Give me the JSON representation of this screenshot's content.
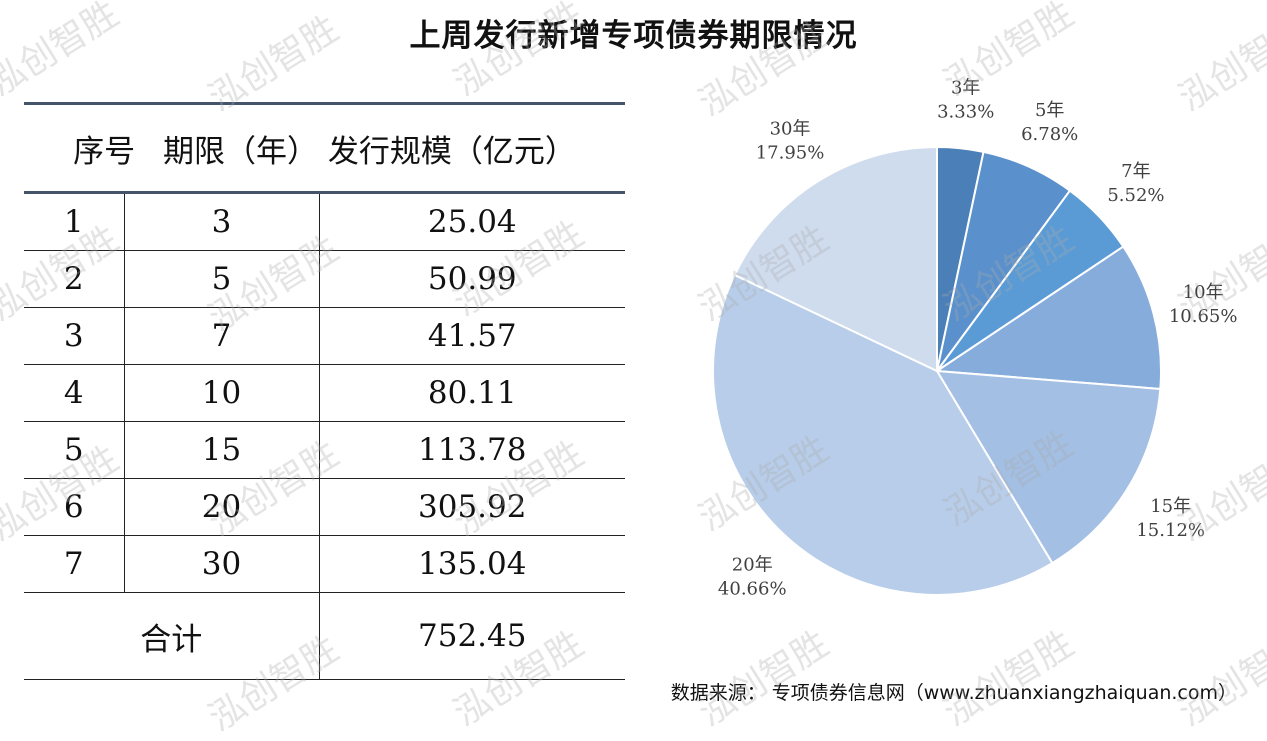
{
  "title": "上周发行新增专项债券期限情况",
  "watermark": "泓创智胜",
  "table": {
    "headers": [
      "序号",
      "期限（年）",
      "发行规模（亿元）"
    ],
    "rows": [
      {
        "no": "1",
        "term": "3",
        "amount": "25.04"
      },
      {
        "no": "2",
        "term": "5",
        "amount": "50.99"
      },
      {
        "no": "3",
        "term": "7",
        "amount": "41.57"
      },
      {
        "no": "4",
        "term": "10",
        "amount": "80.11"
      },
      {
        "no": "5",
        "term": "15",
        "amount": "113.78"
      },
      {
        "no": "6",
        "term": "20",
        "amount": "305.92"
      },
      {
        "no": "7",
        "term": "30",
        "amount": "135.04"
      }
    ],
    "total_label": "合计",
    "total_value": "752.45"
  },
  "chart_data": {
    "type": "pie",
    "categories": [
      "3年",
      "5年",
      "7年",
      "10年",
      "15年",
      "20年",
      "30年"
    ],
    "values": [
      3.33,
      6.78,
      5.52,
      10.65,
      15.12,
      40.66,
      17.95
    ],
    "labels": [
      "3.33%",
      "6.78%",
      "5.52%",
      "10.65%",
      "15.12%",
      "40.66%",
      "17.95%"
    ],
    "colors": [
      "#4a7fb8",
      "#5a91cc",
      "#5b9bd5",
      "#86acdb",
      "#a3bfe3",
      "#b8cde9",
      "#cfdcee"
    ],
    "start_angle": "12 o'clock",
    "direction": "clockwise",
    "legend": "none"
  },
  "source": "数据来源：  专项债券信息网（www.zhuanxiangzhaiquan.com）"
}
